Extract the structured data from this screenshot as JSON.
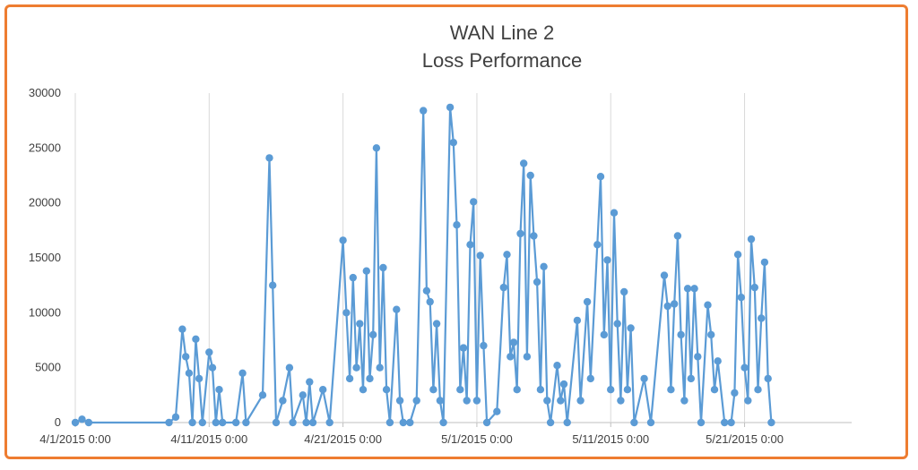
{
  "chart_data": {
    "type": "line",
    "title": "WAN Line 2",
    "subtitle": "Loss Performance",
    "xlabel": "",
    "ylabel": "",
    "ylim": [
      0,
      30000
    ],
    "y_ticks": [
      "0",
      "5000",
      "10000",
      "15000",
      "20000",
      "25000",
      "30000"
    ],
    "x_ticks": [
      "4/1/2015 0:00",
      "4/11/2015 0:00",
      "4/21/2015 0:00",
      "5/1/2015 0:00",
      "5/11/2015 0:00",
      "5/21/2015 0:00"
    ],
    "xlim": [
      "4/1/2015 0:00",
      "5/29/2015 0:00"
    ],
    "grid": "vertical",
    "series_color": "#5b9bd5",
    "series": [
      {
        "points": [
          [
            "4/1/2015 0:00",
            0
          ],
          [
            "4/1/2015 12:00",
            300
          ],
          [
            "4/2/2015 0:00",
            0
          ],
          [
            "4/8/2015 0:00",
            0
          ],
          [
            "4/8/2015 12:00",
            500
          ],
          [
            "4/9/2015 0:00",
            8500
          ],
          [
            "4/9/2015 6:00",
            6000
          ],
          [
            "4/9/2015 12:00",
            4500
          ],
          [
            "4/9/2015 18:00",
            0
          ],
          [
            "4/10/2015 0:00",
            7600
          ],
          [
            "4/10/2015 6:00",
            4000
          ],
          [
            "4/10/2015 12:00",
            0
          ],
          [
            "4/11/2015 0:00",
            6400
          ],
          [
            "4/11/2015 6:00",
            5000
          ],
          [
            "4/11/2015 12:00",
            0
          ],
          [
            "4/11/2015 18:00",
            3000
          ],
          [
            "4/12/2015 0:00",
            0
          ],
          [
            "4/13/2015 0:00",
            0
          ],
          [
            "4/13/2015 12:00",
            4500
          ],
          [
            "4/13/2015 18:00",
            0
          ],
          [
            "4/15/2015 0:00",
            2500
          ],
          [
            "4/15/2015 12:00",
            24100
          ],
          [
            "4/15/2015 18:00",
            12500
          ],
          [
            "4/16/2015 0:00",
            0
          ],
          [
            "4/16/2015 12:00",
            2000
          ],
          [
            "4/17/2015 0:00",
            5000
          ],
          [
            "4/17/2015 6:00",
            0
          ],
          [
            "4/18/2015 0:00",
            2500
          ],
          [
            "4/18/2015 6:00",
            0
          ],
          [
            "4/18/2015 12:00",
            3700
          ],
          [
            "4/18/2015 18:00",
            0
          ],
          [
            "4/19/2015 12:00",
            3000
          ],
          [
            "4/20/2015 0:00",
            0
          ],
          [
            "4/21/2015 0:00",
            16600
          ],
          [
            "4/21/2015 6:00",
            10000
          ],
          [
            "4/21/2015 12:00",
            4000
          ],
          [
            "4/21/2015 18:00",
            13200
          ],
          [
            "4/22/2015 0:00",
            5000
          ],
          [
            "4/22/2015 6:00",
            9000
          ],
          [
            "4/22/2015 12:00",
            3000
          ],
          [
            "4/22/2015 18:00",
            13800
          ],
          [
            "4/23/2015 0:00",
            4000
          ],
          [
            "4/23/2015 6:00",
            8000
          ],
          [
            "4/23/2015 12:00",
            25000
          ],
          [
            "4/23/2015 18:00",
            5000
          ],
          [
            "4/24/2015 0:00",
            14100
          ],
          [
            "4/24/2015 6:00",
            3000
          ],
          [
            "4/24/2015 12:00",
            0
          ],
          [
            "4/25/2015 0:00",
            10300
          ],
          [
            "4/25/2015 6:00",
            2000
          ],
          [
            "4/25/2015 12:00",
            0
          ],
          [
            "4/26/2015 0:00",
            0
          ],
          [
            "4/26/2015 12:00",
            2000
          ],
          [
            "4/27/2015 0:00",
            28400
          ],
          [
            "4/27/2015 6:00",
            12000
          ],
          [
            "4/27/2015 12:00",
            11000
          ],
          [
            "4/27/2015 18:00",
            3000
          ],
          [
            "4/28/2015 0:00",
            9000
          ],
          [
            "4/28/2015 6:00",
            2000
          ],
          [
            "4/28/2015 12:00",
            0
          ],
          [
            "4/29/2015 0:00",
            28700
          ],
          [
            "4/29/2015 6:00",
            25500
          ],
          [
            "4/29/2015 12:00",
            18000
          ],
          [
            "4/29/2015 18:00",
            3000
          ],
          [
            "4/30/2015 0:00",
            6800
          ],
          [
            "4/30/2015 6:00",
            2000
          ],
          [
            "4/30/2015 12:00",
            16200
          ],
          [
            "4/30/2015 18:00",
            20100
          ],
          [
            "5/1/2015 0:00",
            2000
          ],
          [
            "5/1/2015 6:00",
            15200
          ],
          [
            "5/1/2015 12:00",
            7000
          ],
          [
            "5/1/2015 18:00",
            0
          ],
          [
            "5/2/2015 12:00",
            1000
          ],
          [
            "5/3/2015 0:00",
            12300
          ],
          [
            "5/3/2015 6:00",
            15300
          ],
          [
            "5/3/2015 12:00",
            6000
          ],
          [
            "5/3/2015 18:00",
            7300
          ],
          [
            "5/4/2015 0:00",
            3000
          ],
          [
            "5/4/2015 6:00",
            17200
          ],
          [
            "5/4/2015 12:00",
            23600
          ],
          [
            "5/4/2015 18:00",
            6000
          ],
          [
            "5/5/2015 0:00",
            22500
          ],
          [
            "5/5/2015 6:00",
            17000
          ],
          [
            "5/5/2015 12:00",
            12800
          ],
          [
            "5/5/2015 18:00",
            3000
          ],
          [
            "5/6/2015 0:00",
            14200
          ],
          [
            "5/6/2015 6:00",
            2000
          ],
          [
            "5/6/2015 12:00",
            0
          ],
          [
            "5/7/2015 0:00",
            5200
          ],
          [
            "5/7/2015 6:00",
            2000
          ],
          [
            "5/7/2015 12:00",
            3500
          ],
          [
            "5/7/2015 18:00",
            0
          ],
          [
            "5/8/2015 12:00",
            9300
          ],
          [
            "5/8/2015 18:00",
            2000
          ],
          [
            "5/9/2015 6:00",
            11000
          ],
          [
            "5/9/2015 12:00",
            4000
          ],
          [
            "5/10/2015 0:00",
            16200
          ],
          [
            "5/10/2015 6:00",
            22400
          ],
          [
            "5/10/2015 12:00",
            8000
          ],
          [
            "5/10/2015 18:00",
            14800
          ],
          [
            "5/11/2015 0:00",
            3000
          ],
          [
            "5/11/2015 6:00",
            19100
          ],
          [
            "5/11/2015 12:00",
            9000
          ],
          [
            "5/11/2015 18:00",
            2000
          ],
          [
            "5/12/2015 0:00",
            11900
          ],
          [
            "5/12/2015 6:00",
            3000
          ],
          [
            "5/12/2015 12:00",
            8600
          ],
          [
            "5/12/2015 18:00",
            0
          ],
          [
            "5/13/2015 12:00",
            4000
          ],
          [
            "5/14/2015 0:00",
            0
          ],
          [
            "5/15/2015 0:00",
            13400
          ],
          [
            "5/15/2015 6:00",
            10600
          ],
          [
            "5/15/2015 12:00",
            3000
          ],
          [
            "5/15/2015 18:00",
            10800
          ],
          [
            "5/16/2015 0:00",
            17000
          ],
          [
            "5/16/2015 6:00",
            8000
          ],
          [
            "5/16/2015 12:00",
            2000
          ],
          [
            "5/16/2015 18:00",
            12200
          ],
          [
            "5/17/2015 0:00",
            4000
          ],
          [
            "5/17/2015 6:00",
            12200
          ],
          [
            "5/17/2015 12:00",
            6000
          ],
          [
            "5/17/2015 18:00",
            0
          ],
          [
            "5/18/2015 6:00",
            10700
          ],
          [
            "5/18/2015 12:00",
            8000
          ],
          [
            "5/18/2015 18:00",
            3000
          ],
          [
            "5/19/2015 0:00",
            5600
          ],
          [
            "5/19/2015 12:00",
            0
          ],
          [
            "5/20/2015 0:00",
            0
          ],
          [
            "5/20/2015 6:00",
            2700
          ],
          [
            "5/20/2015 12:00",
            15300
          ],
          [
            "5/20/2015 18:00",
            11400
          ],
          [
            "5/21/2015 0:00",
            5000
          ],
          [
            "5/21/2015 6:00",
            2000
          ],
          [
            "5/21/2015 12:00",
            16700
          ],
          [
            "5/21/2015 18:00",
            12300
          ],
          [
            "5/22/2015 0:00",
            3000
          ],
          [
            "5/22/2015 6:00",
            9500
          ],
          [
            "5/22/2015 12:00",
            14600
          ],
          [
            "5/22/2015 18:00",
            4000
          ],
          [
            "5/23/2015 0:00",
            0
          ]
        ]
      }
    ]
  }
}
